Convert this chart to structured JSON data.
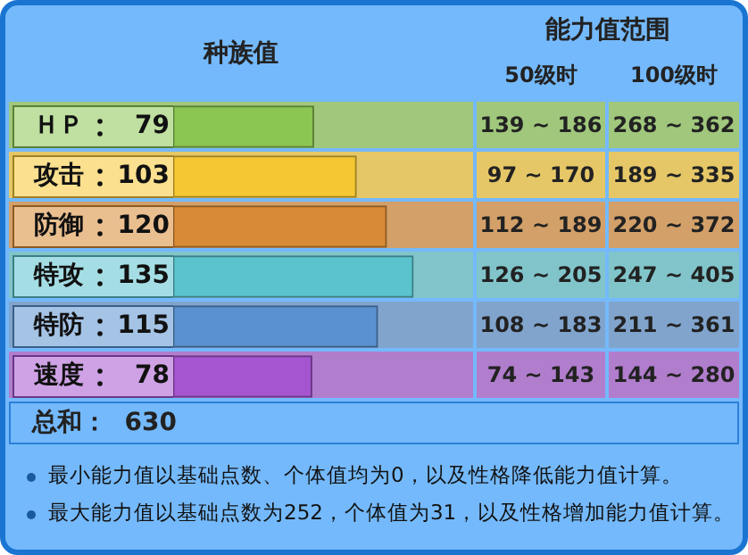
{
  "chart_data": {
    "type": "bar",
    "orientation": "horizontal",
    "title": "种族值",
    "categories": [
      "ＨＰ",
      "攻击",
      "防御",
      "特攻",
      "特防",
      "速度"
    ],
    "values": [
      79,
      103,
      120,
      135,
      115,
      78
    ],
    "colors": [
      "#8bc653",
      "#f5c733",
      "#d98a36",
      "#5ac3cd",
      "#5a91cf",
      "#a555cf"
    ],
    "data_labels": true,
    "annotations": [
      "能力值范围",
      "50级时",
      "100级时",
      "139 ~ 186",
      "268 ~ 362",
      "97 ~ 170",
      "189 ~ 335",
      "112 ~ 189",
      "220 ~ 372",
      "126 ~ 205",
      "247 ~ 405",
      "108 ~ 183",
      "211 ~ 361",
      "74 ~ 143",
      "144 ~ 280",
      "总和：  630",
      "最小能力值以基础点数、个体值均为0，以及性格降低能力值计算。",
      "最大能力值以基础点数为252，个体值为31，以及性格增加能力值计算。"
    ]
  }
}
